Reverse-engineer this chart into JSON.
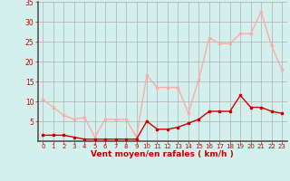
{
  "hours": [
    0,
    1,
    2,
    3,
    4,
    5,
    6,
    7,
    8,
    9,
    10,
    11,
    12,
    13,
    14,
    15,
    16,
    17,
    18,
    19,
    20,
    21,
    22,
    23
  ],
  "wind_avg": [
    1.5,
    1.5,
    1.5,
    1.0,
    0.5,
    0.5,
    0.5,
    0.5,
    0.5,
    0.5,
    5.0,
    3.0,
    3.0,
    3.5,
    4.5,
    5.5,
    7.5,
    7.5,
    7.5,
    11.5,
    8.5,
    8.5,
    7.5,
    7.0
  ],
  "wind_gust": [
    10.5,
    8.5,
    6.5,
    5.5,
    6.0,
    1.0,
    5.5,
    5.5,
    5.5,
    1.0,
    16.5,
    13.5,
    13.5,
    13.5,
    7.0,
    15.5,
    26.0,
    24.5,
    24.5,
    27.0,
    27.0,
    32.5,
    24.0,
    18.0
  ],
  "avg_color": "#cc0000",
  "gust_color": "#ffaaaa",
  "bg_color": "#d4f0ec",
  "grid_color": "#b0b0b0",
  "tick_color": "#cc0000",
  "label_color": "#cc0000",
  "ylim": [
    0,
    35
  ],
  "yticks": [
    5,
    10,
    15,
    20,
    25,
    30,
    35
  ],
  "xlabel": "Vent moyen/en rafales ( km/h )"
}
